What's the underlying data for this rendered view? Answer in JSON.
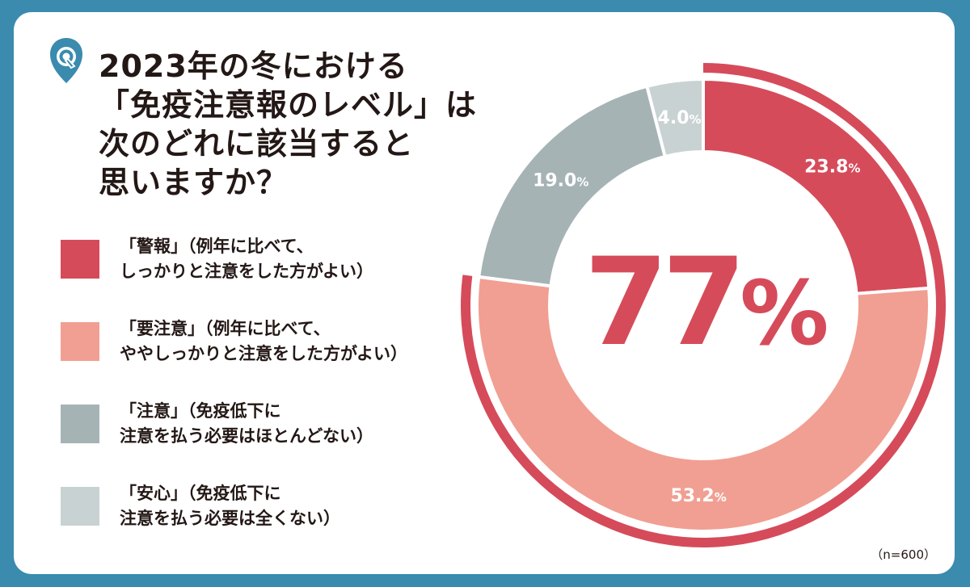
{
  "title": {
    "lines": [
      "2023年の冬における",
      "「免疫注意報のレベル」は",
      "次のどれに該当すると",
      "思いますか？"
    ]
  },
  "icon": {
    "name": "q-shield-icon",
    "letter": "Q",
    "color": "#3a8bae"
  },
  "colors": {
    "background": "#3a8bae",
    "outer_arc": "#d64b5a"
  },
  "legend": [
    {
      "lines": [
        "「警報」（例年に比べて、",
        "しっかりと注意をした方がよい）"
      ],
      "color": "#d64b5a"
    },
    {
      "lines": [
        "「要注意」（例年に比べて、",
        "ややしっかりと注意をした方がよい）"
      ],
      "color": "#f19f92"
    },
    {
      "lines": [
        "「注意」（免疫低下に",
        "注意を払う必要はほとんどない）"
      ],
      "color": "#a5b3b5"
    },
    {
      "lines": [
        "「安心」（免疫低下に",
        "注意を払う必要は全くない）"
      ],
      "color": "#c9d2d3"
    }
  ],
  "chart_data": {
    "type": "pie",
    "variant": "donut",
    "start": "top",
    "direction": "clockwise",
    "labels": [
      "「警報」",
      "「要注意」",
      "「注意」",
      "「安心」"
    ],
    "values": [
      23.8,
      53.2,
      19.0,
      4.0
    ],
    "value_labels": [
      "23.8",
      "53.2",
      "19.0",
      "4.0"
    ],
    "unit": "%",
    "center_label": "77%",
    "center_value": 77,
    "outer_arc_covers": [
      "「警報」",
      "「要注意」"
    ],
    "colors": [
      "#d64b5a",
      "#f19f92",
      "#a5b3b5",
      "#c9d2d3"
    ]
  },
  "footnote": "（n=600）"
}
